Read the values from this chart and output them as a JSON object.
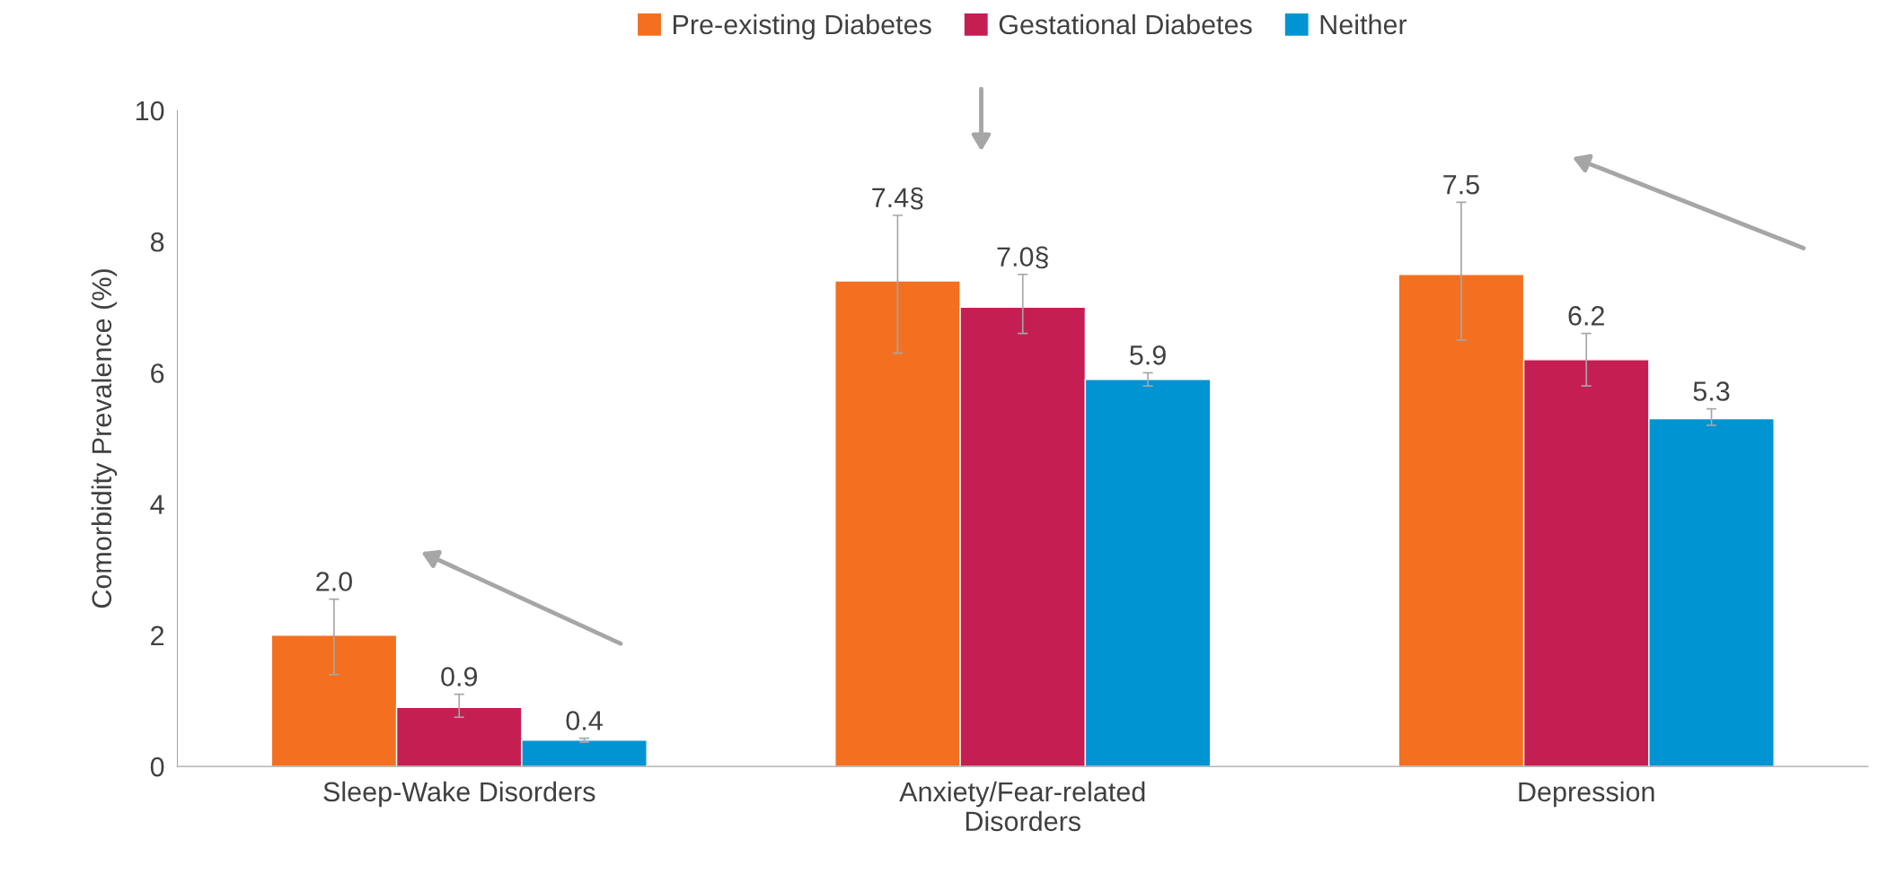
{
  "chart_data": {
    "type": "bar",
    "ylabel": "Comorbidity Prevalence (%)",
    "categories": [
      "Sleep-Wake Disorders",
      "Anxiety/Fear-related\nDisorders",
      "Depression"
    ],
    "series": [
      {
        "name": "Pre-existing Diabetes",
        "color": "#f37021",
        "values": [
          2.0,
          7.4,
          7.5
        ],
        "value_labels": [
          "2.0",
          "7.4§",
          "7.5"
        ],
        "errors": [
          [
            1.4,
            2.55
          ],
          [
            6.3,
            8.4
          ],
          [
            6.5,
            8.6
          ]
        ]
      },
      {
        "name": "Gestational Diabetes",
        "color": "#c41e52",
        "values": [
          0.9,
          7.0,
          6.2
        ],
        "value_labels": [
          "0.9",
          "7.0§",
          "6.2"
        ],
        "errors": [
          [
            0.75,
            1.1
          ],
          [
            6.6,
            7.5
          ],
          [
            5.8,
            6.6
          ]
        ]
      },
      {
        "name": "Neither",
        "color": "#0094d2",
        "values": [
          0.4,
          5.9,
          5.3
        ],
        "value_labels": [
          "0.4",
          "5.9",
          "5.3"
        ],
        "errors": [
          0.03,
          [
            5.8,
            6.0
          ],
          [
            5.2,
            5.45
          ]
        ]
      }
    ],
    "ylim": [
      0,
      10
    ],
    "yticks": [
      0,
      2,
      4,
      6,
      8,
      10
    ],
    "grid": false,
    "legend": "top"
  }
}
